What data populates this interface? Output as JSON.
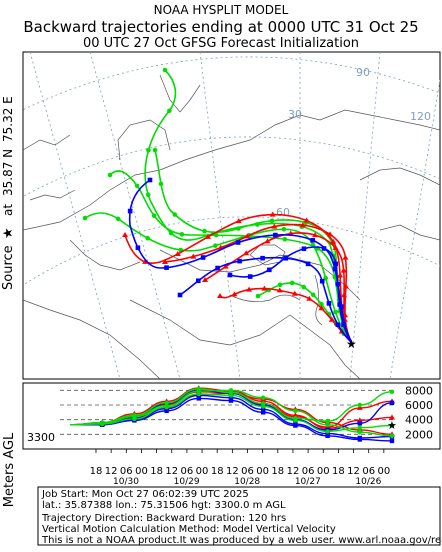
{
  "header": {
    "line1": "NOAA HYSPLIT MODEL",
    "line2": "Backward trajectories ending at 0000 UTC 31 Oct 25",
    "line3": "00 UTC 27 Oct    GFSG  Forecast Initialization"
  },
  "side_label": {
    "source_prefix": "Source",
    "at": "at",
    "lat": "35.87 N",
    "lon": "75.32 E",
    "meters": "Meters AGL"
  },
  "map": {
    "lat_labels": [
      "30",
      "60"
    ],
    "lon_labels": [
      "90",
      "120"
    ]
  },
  "footer": {
    "job": "Job Start: Mon Oct 27 06:02:39 UTC 2025",
    "loc": "lat.: 35.87388   lon.: 75.31506   hgt: 3300.0 m AGL",
    "direction": "Trajectory Direction: Backward       Duration: 120 hrs",
    "vertical": "Vertical Motion Calculation Method: Model Vertical Velocity",
    "disclaimer": "This is not a NOAA product.It was produced by a web user. www.arl.noaa.gov/ready"
  },
  "colors": {
    "red": "#ff0000",
    "blue": "#0000ff",
    "green": "#00dd00",
    "frame": "#000000",
    "grid": "#7f9fbf"
  },
  "chart_data": {
    "type": "line",
    "title": "Backward trajectories ending at 0000 UTC 31 Oct 25",
    "xlabel": "",
    "ylabel": "Meters AGL",
    "source_height_label": "3300",
    "ylim": [
      0,
      9000
    ],
    "yticks": [
      2000,
      4000,
      6000,
      8000
    ],
    "xticks_hours": [
      "18",
      "12",
      "06",
      "00",
      "18",
      "12",
      "06",
      "00",
      "18",
      "12",
      "06",
      "00",
      "18",
      "12",
      "06",
      "00",
      "18",
      "12",
      "06",
      "00"
    ],
    "xticks_dates": [
      "10/30",
      "10/29",
      "10/28",
      "10/27",
      "10/26"
    ],
    "x_hours_before_end": [
      120,
      108,
      96,
      84,
      72,
      60,
      48,
      36,
      24,
      12,
      0
    ],
    "series": [
      {
        "color": "red",
        "heights": [
          3300,
          3400,
          4200,
          5600,
          7400,
          7600,
          6800,
          5400,
          3600,
          2600,
          2000
        ]
      },
      {
        "color": "red",
        "heights": [
          3300,
          3500,
          4500,
          6000,
          7800,
          7700,
          6200,
          4400,
          3000,
          5600,
          6500
        ]
      },
      {
        "color": "red",
        "heights": [
          3300,
          3600,
          4800,
          6500,
          8300,
          7900,
          6500,
          4600,
          2800,
          3900,
          4300
        ]
      },
      {
        "color": "blue",
        "heights": [
          3300,
          3400,
          4000,
          5500,
          7300,
          7000,
          5400,
          3400,
          2100,
          1500,
          1700
        ]
      },
      {
        "color": "blue",
        "heights": [
          3300,
          3500,
          4300,
          6200,
          8000,
          7600,
          6000,
          4000,
          2600,
          3500,
          6300
        ]
      },
      {
        "color": "blue",
        "heights": [
          3300,
          3300,
          3900,
          5200,
          6900,
          6600,
          5000,
          3200,
          1800,
          1300,
          1100
        ]
      },
      {
        "color": "green",
        "heights": [
          3300,
          3500,
          4400,
          5900,
          7900,
          8000,
          7000,
          5200,
          3300,
          2300,
          1800
        ]
      },
      {
        "color": "green",
        "heights": [
          3300,
          3600,
          4600,
          6300,
          8200,
          7700,
          6200,
          4200,
          3800,
          6000,
          7800
        ]
      },
      {
        "color": "green",
        "heights": [
          3300,
          3400,
          4100,
          5700,
          7500,
          7300,
          5800,
          3900,
          2400,
          2900,
          3200
        ]
      }
    ]
  }
}
